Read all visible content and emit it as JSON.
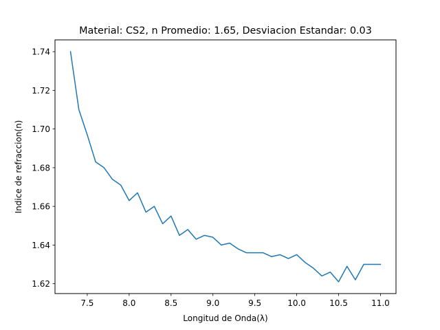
{
  "chart_data": {
    "type": "line",
    "title": "Material: CS2, n Promedio: 1.65, Desviacion Estandar: 0.03",
    "xlabel": "Longitud de Onda(λ)",
    "ylabel": "Indice de refraccion(n)",
    "xlim": [
      7.115,
      11.185
    ],
    "ylim": [
      1.6149,
      1.7461
    ],
    "xticks": [
      7.5,
      8.0,
      8.5,
      9.0,
      9.5,
      10.0,
      10.5,
      11.0
    ],
    "xtick_labels": [
      "7.5",
      "8.0",
      "8.5",
      "9.0",
      "9.5",
      "10.0",
      "10.5",
      "11.0"
    ],
    "yticks": [
      1.62,
      1.64,
      1.66,
      1.68,
      1.7,
      1.72,
      1.74
    ],
    "ytick_labels": [
      "1.62",
      "1.64",
      "1.66",
      "1.68",
      "1.70",
      "1.72",
      "1.74"
    ],
    "grid": false,
    "series": [
      {
        "color": "#1f77b4",
        "x": [
          7.3,
          7.4,
          7.5,
          7.6,
          7.7,
          7.8,
          7.9,
          8.0,
          8.1,
          8.2,
          8.3,
          8.4,
          8.5,
          8.6,
          8.7,
          8.8,
          8.9,
          9.0,
          9.1,
          9.2,
          9.3,
          9.4,
          9.5,
          9.6,
          9.7,
          9.8,
          9.9,
          10.0,
          10.1,
          10.2,
          10.3,
          10.4,
          10.5,
          10.6,
          10.7,
          10.8,
          10.9,
          11.0
        ],
        "y": [
          1.74,
          1.71,
          1.697,
          1.683,
          1.68,
          1.674,
          1.671,
          1.663,
          1.667,
          1.657,
          1.66,
          1.651,
          1.655,
          1.645,
          1.648,
          1.643,
          1.645,
          1.644,
          1.64,
          1.641,
          1.638,
          1.636,
          1.636,
          1.636,
          1.634,
          1.635,
          1.633,
          1.635,
          1.631,
          1.628,
          1.624,
          1.626,
          1.621,
          1.629,
          1.622,
          1.63,
          1.63,
          1.63
        ]
      }
    ]
  }
}
